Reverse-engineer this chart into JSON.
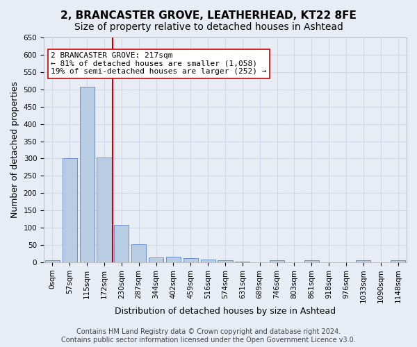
{
  "title": "2, BRANCASTER GROVE, LEATHERHEAD, KT22 8FE",
  "subtitle": "Size of property relative to detached houses in Ashtead",
  "xlabel": "Distribution of detached houses by size in Ashtead",
  "ylabel": "Number of detached properties",
  "categories": [
    "0sqm",
    "57sqm",
    "115sqm",
    "172sqm",
    "230sqm",
    "287sqm",
    "344sqm",
    "402sqm",
    "459sqm",
    "516sqm",
    "574sqm",
    "631sqm",
    "689sqm",
    "746sqm",
    "803sqm",
    "861sqm",
    "918sqm",
    "976sqm",
    "1033sqm",
    "1090sqm",
    "1148sqm"
  ],
  "values": [
    5,
    300,
    507,
    302,
    108,
    53,
    14,
    15,
    12,
    8,
    5,
    2,
    0,
    5,
    0,
    5,
    0,
    0,
    5,
    0,
    5
  ],
  "bar_color": "#b8cce4",
  "bar_edge_color": "#4472c4",
  "vline_x": 3.5,
  "vline_color": "#cc0000",
  "annotation_text": "2 BRANCASTER GROVE: 217sqm\n← 81% of detached houses are smaller (1,058)\n19% of semi-detached houses are larger (252) →",
  "annotation_box_color": "#ffffff",
  "annotation_box_edge": "#cc0000",
  "ylim": [
    0,
    650
  ],
  "yticks": [
    0,
    50,
    100,
    150,
    200,
    250,
    300,
    350,
    400,
    450,
    500,
    550,
    600,
    650
  ],
  "grid_color": "#d0d8e8",
  "background_color": "#e8edf5",
  "footer_text": "Contains HM Land Registry data © Crown copyright and database right 2024.\nContains public sector information licensed under the Open Government Licence v3.0.",
  "title_fontsize": 11,
  "subtitle_fontsize": 10,
  "xlabel_fontsize": 9,
  "ylabel_fontsize": 9,
  "tick_fontsize": 7.5,
  "annotation_fontsize": 8,
  "footer_fontsize": 7
}
